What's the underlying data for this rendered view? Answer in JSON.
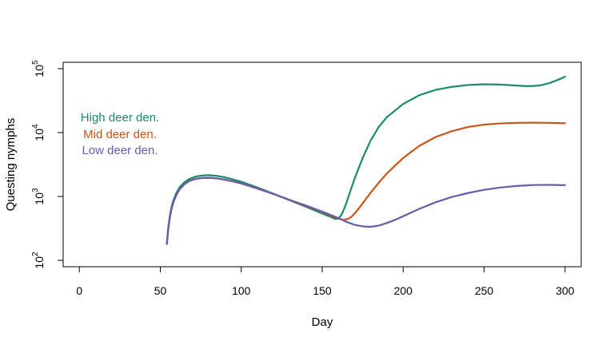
{
  "chart_data": {
    "type": "line",
    "title": "",
    "xlabel": "Day",
    "ylabel": "Questing nymphs",
    "xlim": [
      -10,
      310
    ],
    "ylim_log10": [
      1.9,
      5.1
    ],
    "y_scale": "log10",
    "grid": false,
    "legend_position": "left",
    "x_ticks": [
      0,
      50,
      100,
      150,
      200,
      250,
      300
    ],
    "x_tick_labels": [
      "0",
      "50",
      "100",
      "150",
      "200",
      "250",
      "300"
    ],
    "y_ticks": [
      100,
      1000,
      10000,
      100000
    ],
    "y_tick_base": "10",
    "y_tick_exponents": [
      "2",
      "3",
      "4",
      "5"
    ],
    "series": [
      {
        "name": "High deer den.",
        "color": "#1b8a6b",
        "x": [
          54,
          55,
          56,
          57,
          58,
          60,
          62,
          65,
          68,
          72,
          76,
          80,
          85,
          90,
          95,
          100,
          110,
          120,
          130,
          140,
          150,
          155,
          158,
          160,
          162,
          164,
          166,
          168,
          170,
          175,
          180,
          185,
          190,
          200,
          210,
          220,
          230,
          240,
          250,
          260,
          270,
          275,
          280,
          285,
          290,
          295,
          300
        ],
        "y": [
          180,
          340,
          520,
          700,
          860,
          1150,
          1400,
          1680,
          1880,
          2050,
          2130,
          2150,
          2100,
          1990,
          1850,
          1700,
          1380,
          1100,
          870,
          690,
          540,
          480,
          445,
          450,
          520,
          680,
          950,
          1350,
          1900,
          4000,
          7600,
          12300,
          17500,
          28000,
          38500,
          46500,
          52000,
          55500,
          57000,
          56500,
          54500,
          53500,
          53500,
          55000,
          59000,
          66000,
          75000
        ]
      },
      {
        "name": "Mid deer den.",
        "color": "#c9541a",
        "x": [
          54,
          55,
          56,
          57,
          58,
          60,
          62,
          65,
          68,
          72,
          76,
          80,
          85,
          90,
          95,
          100,
          110,
          120,
          130,
          140,
          150,
          155,
          160,
          163,
          166,
          168,
          170,
          172,
          175,
          180,
          185,
          190,
          200,
          210,
          220,
          230,
          240,
          250,
          260,
          270,
          280,
          290,
          300
        ],
        "y": [
          180,
          320,
          490,
          650,
          800,
          1070,
          1300,
          1560,
          1750,
          1890,
          1950,
          1960,
          1920,
          1830,
          1720,
          1600,
          1330,
          1090,
          880,
          710,
          570,
          505,
          450,
          430,
          445,
          480,
          540,
          620,
          780,
          1150,
          1650,
          2300,
          4000,
          6200,
          8500,
          10500,
          12200,
          13300,
          13900,
          14200,
          14300,
          14200,
          14000
        ]
      },
      {
        "name": "Low deer den.",
        "color": "#6a5aa8",
        "x": [
          54,
          55,
          56,
          57,
          58,
          60,
          62,
          65,
          68,
          72,
          76,
          80,
          85,
          90,
          95,
          100,
          110,
          120,
          130,
          140,
          150,
          160,
          165,
          170,
          175,
          180,
          185,
          190,
          195,
          200,
          210,
          220,
          230,
          240,
          250,
          260,
          270,
          280,
          290,
          300
        ],
        "y": [
          180,
          320,
          490,
          650,
          800,
          1070,
          1300,
          1560,
          1750,
          1890,
          1950,
          1960,
          1920,
          1830,
          1720,
          1600,
          1330,
          1090,
          880,
          720,
          580,
          460,
          400,
          360,
          340,
          335,
          350,
          385,
          430,
          490,
          640,
          810,
          980,
          1130,
          1270,
          1380,
          1460,
          1510,
          1520,
          1500
        ]
      }
    ]
  }
}
